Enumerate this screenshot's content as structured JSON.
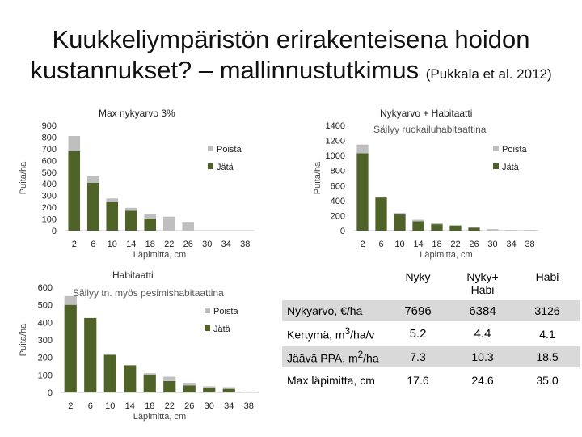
{
  "slide": {
    "title_line1": "Kuukkeliympäristön erirakenteisena hoidon",
    "title_line2": "kustannukset? – mallinnustutkimus ",
    "title_citation": "(Pukkala et al. 2012)"
  },
  "colors": {
    "jata": "#4f6228",
    "poista": "#bfbfbf"
  },
  "chart_data": [
    {
      "type": "bar",
      "stacked": true,
      "title": "Max nykyarvo 3%",
      "xlabel": "Läpimitta, cm",
      "ylabel": "Puita/ha",
      "ylim": [
        0,
        900
      ],
      "yticks": [
        0,
        100,
        200,
        300,
        400,
        500,
        600,
        700,
        800,
        900
      ],
      "categories": [
        "2",
        "6",
        "10",
        "14",
        "18",
        "22",
        "26",
        "30",
        "34",
        "38"
      ],
      "series": [
        {
          "name": "Poista",
          "values": [
            130,
            55,
            30,
            25,
            40,
            120,
            75,
            0,
            0,
            0
          ]
        },
        {
          "name": "Jätä",
          "values": [
            680,
            410,
            245,
            170,
            105,
            0,
            0,
            0,
            0,
            0
          ]
        }
      ],
      "legend": "right",
      "annotation": ""
    },
    {
      "type": "bar",
      "stacked": true,
      "title": "Nykyarvo + Habitaatti",
      "xlabel": "Läpimitta, cm",
      "ylabel": "Puita/ha",
      "ylim": [
        0,
        1400
      ],
      "yticks": [
        0,
        200,
        400,
        600,
        800,
        1000,
        1200,
        1400
      ],
      "categories": [
        "2",
        "6",
        "10",
        "14",
        "18",
        "22",
        "26",
        "30",
        "34",
        "38"
      ],
      "series": [
        {
          "name": "Poista",
          "values": [
            115,
            0,
            20,
            20,
            15,
            10,
            5,
            20,
            10,
            10
          ]
        },
        {
          "name": "Jätä",
          "values": [
            1030,
            440,
            215,
            125,
            85,
            65,
            40,
            0,
            0,
            0
          ]
        }
      ],
      "legend": "right",
      "annotation": "Säilyy ruokailuhabitaattina"
    },
    {
      "type": "bar",
      "stacked": true,
      "title": "Habitaatti",
      "xlabel": "Läpimitta, cm",
      "ylabel": "Puita/ha",
      "ylim": [
        0,
        600
      ],
      "yticks": [
        0,
        100,
        200,
        300,
        400,
        500,
        600
      ],
      "categories": [
        "2",
        "6",
        "10",
        "14",
        "18",
        "22",
        "26",
        "30",
        "34",
        "38"
      ],
      "series": [
        {
          "name": "Poista",
          "values": [
            50,
            0,
            0,
            0,
            10,
            25,
            15,
            10,
            10,
            5
          ]
        },
        {
          "name": "Jätä",
          "values": [
            500,
            425,
            215,
            155,
            100,
            65,
            40,
            25,
            20,
            0
          ]
        }
      ],
      "legend": "right",
      "annotation": "Säilyy tn. myös pesimishabitaattina"
    },
    {
      "type": "table",
      "columns": [
        "",
        "Nyky",
        "Nyky+ Habi",
        "Habi"
      ],
      "rows": [
        {
          "label": "Nykyarvo, €/ha",
          "values": [
            "7696",
            "6384",
            "3126"
          ]
        },
        {
          "label_pre": "Kertymä, m",
          "label_sup": "3",
          "label_post": "/ha/v",
          "values": [
            "5.2",
            "4.4",
            "4.1"
          ]
        },
        {
          "label_pre": "Jäävä PPA, m",
          "label_sup": "2",
          "label_post": "/ha",
          "values": [
            "7.3",
            "10.3",
            "18.5"
          ]
        },
        {
          "label": "Max läpimitta, cm",
          "values": [
            "17.6",
            "24.6",
            "35.0"
          ]
        }
      ]
    }
  ]
}
